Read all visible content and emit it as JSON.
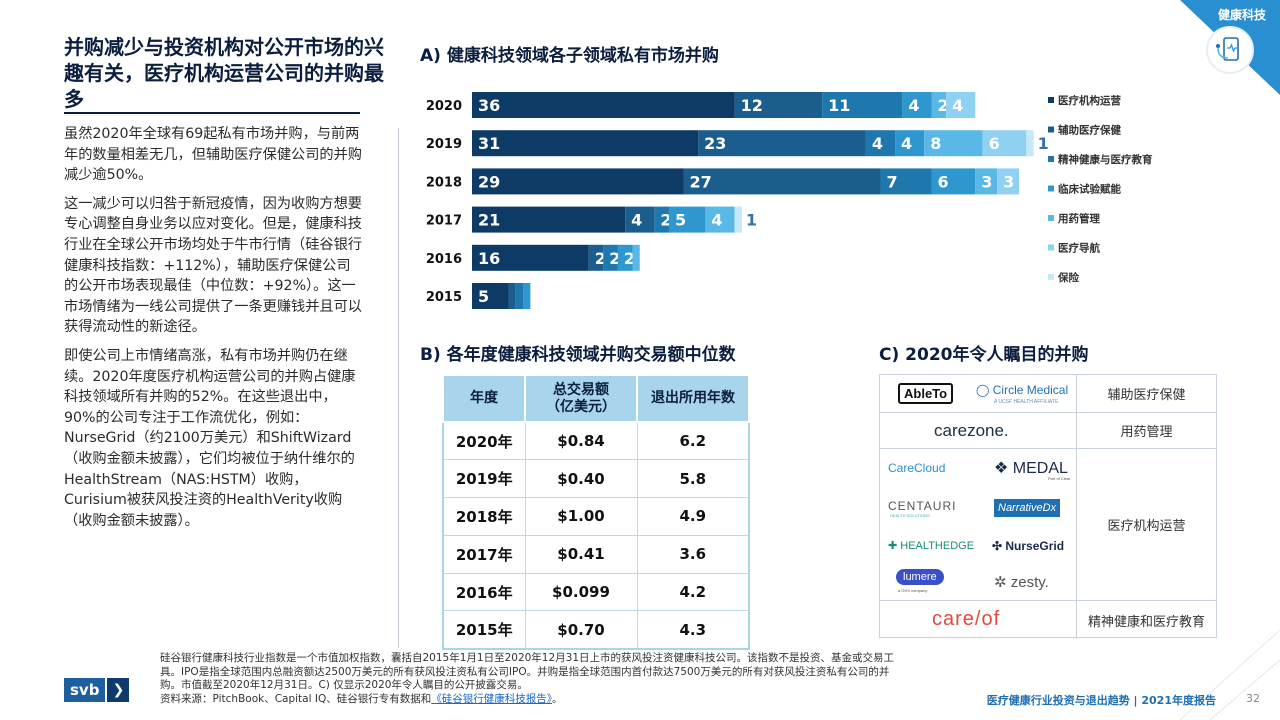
{
  "header": {
    "section_tag": "健康科技"
  },
  "left": {
    "headline": "并购减少与投资机构对公开市场的兴趣有关，医疗机构运营公司的并购最多",
    "paragraphs": [
      "虽然2020年全球有69起私有市场并购，与前两年的数量相差无几，但辅助医疗保健公司的并购减少逾50%。",
      "这一减少可以归咎于新冠疫情，因为收购方想要专心调整自身业务以应对变化。但是，健康科技行业在全球公开市场均处于牛市行情（硅谷银行健康科技指数：+112%），辅助医疗保健公司的公开市场表现最佳（中位数：+92%）。这一市场情绪为一线公司提供了一条更赚钱并且可以获得流动性的新途径。",
      "即使公司上市情绪高涨，私有市场并购仍在继续。2020年度医疗机构运营公司的并购占健康科技领域所有并购的52%。在这些退出中，90%的公司专注于工作流优化，例如：NurseGrid（约2100万美元）和ShiftWizard（收购金额未披露），它们均被位于纳什维尔的HealthStream（NAS:HSTM）收购，Curisium被获风投注资的HealthVerity收购（收购金额未披露）。"
    ]
  },
  "chart_data": {
    "type": "bar",
    "orientation": "horizontal",
    "stacked": true,
    "title": "A) 健康科技领域各子领域私有市场并购",
    "categories": [
      "2020",
      "2019",
      "2018",
      "2017",
      "2016",
      "2015"
    ],
    "series": [
      {
        "name": "医疗机构运营",
        "color": "#0d3b66",
        "values": [
          36,
          31,
          29,
          21,
          16,
          5
        ]
      },
      {
        "name": "辅助医疗保健",
        "color": "#1b5d8c",
        "values": [
          12,
          23,
          27,
          4,
          2,
          1
        ]
      },
      {
        "name": "精神健康与医疗教育",
        "color": "#1f78ad",
        "values": [
          11,
          4,
          7,
          2,
          2,
          1
        ]
      },
      {
        "name": "临床试验赋能",
        "color": "#2f97cf",
        "values": [
          4,
          4,
          6,
          5,
          2,
          1
        ]
      },
      {
        "name": "用药管理",
        "color": "#5ab8e6",
        "values": [
          2,
          8,
          3,
          4,
          1,
          0
        ]
      },
      {
        "name": "医疗导航",
        "color": "#8fd1f2",
        "values": [
          4,
          6,
          3,
          0,
          0,
          0
        ]
      },
      {
        "name": "保险",
        "color": "#c7e8f8",
        "values": [
          0,
          1,
          0,
          1,
          0,
          0
        ]
      }
    ],
    "xlim": [
      0,
      85
    ],
    "legend": "right"
  },
  "table_b": {
    "title": "B) 各年度健康科技领域并购交易额中位数",
    "headers": [
      "年度",
      "总交易额（亿美元）",
      "退出所用年数"
    ],
    "rows": [
      [
        "2020年",
        "$0.84",
        "6.2"
      ],
      [
        "2019年",
        "$0.40",
        "5.8"
      ],
      [
        "2018年",
        "$1.00",
        "4.9"
      ],
      [
        "2017年",
        "$0.41",
        "3.6"
      ],
      [
        "2016年",
        "$0.099",
        "4.2"
      ],
      [
        "2015年",
        "$0.70",
        "4.3"
      ]
    ]
  },
  "table_c": {
    "title": "C) 2020年令人瞩目的并购",
    "rows": [
      {
        "category": "辅助医疗保健",
        "logos": [
          "AbleTo",
          "Circle Medical",
          "A UCSF HEALTH AFFILIATE"
        ]
      },
      {
        "category": "用药管理",
        "logos": [
          "carezone."
        ]
      },
      {
        "category": "医疗机构运营",
        "logos": [
          "CareCloud",
          "MEDAL",
          "Part of Clear",
          "CENTAURI",
          "HEALTH SOLUTIONS",
          "NarrativeDx",
          "HEALTHEDGE",
          "NurseGrid",
          "lumere",
          "a GHX company",
          "zesty."
        ]
      },
      {
        "category": "精神健康和医疗教育",
        "logos": [
          "care/of"
        ]
      }
    ]
  },
  "footer": {
    "note_1": "硅谷银行健康科技行业指数是一个市值加权指数，囊括自2015年1月1日至2020年12月31日上市的获风投注资健康科技公司。该指数不是投资、基金或交易工具。IPO是指全球范围内总融资额达2500万美元的所有获风投注资私有公司IPO。并购是指全球范围内首付款达7500万美元的所有对获风投注资私有公司的并购。市值截至2020年12月31日。C) 仅显示2020年令人瞩目的公开披露交易。",
    "source_prefix": "资料来源：PitchBook、Capital IQ、硅谷银行专有数据和",
    "source_link": "《硅谷银行健康科技报告》",
    "source_suffix": "。",
    "brand": "svb",
    "brand_arrow": "❯",
    "report_title": "医疗健康行业投资与退出趋势 | 2021年度报告",
    "page": "32"
  }
}
